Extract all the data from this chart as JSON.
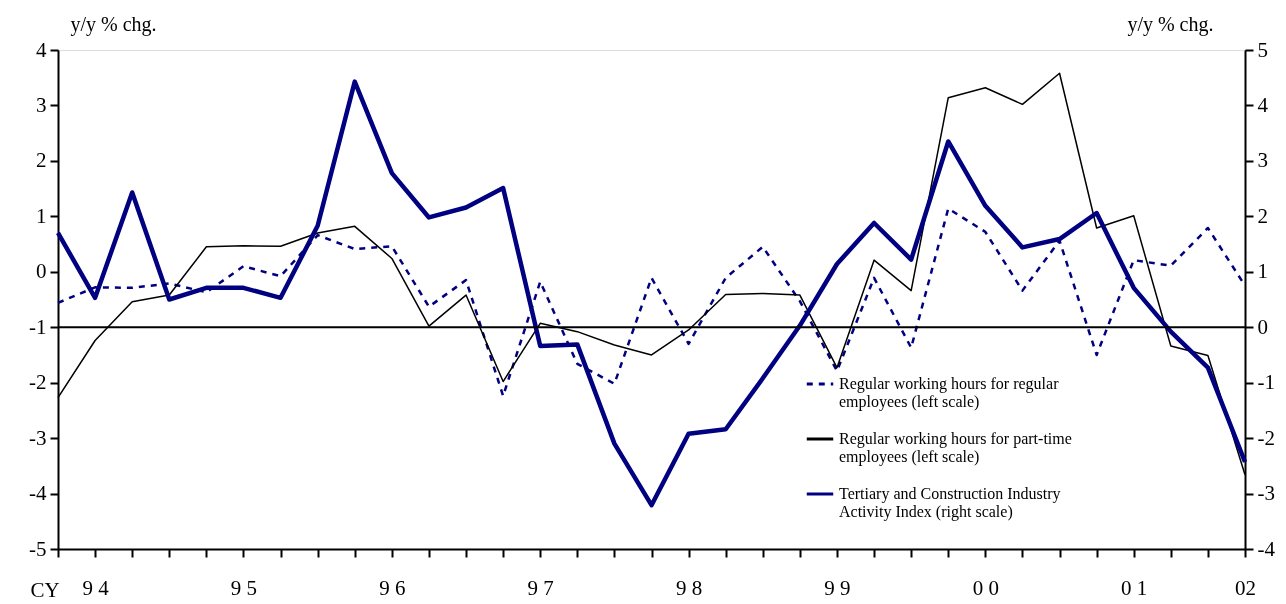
{
  "chart_data": {
    "type": "line",
    "xlabel": "CY",
    "ylabel": "y/y % chg.",
    "y2label": "y/y % chg.",
    "categories": [
      null,
      "9 4",
      null,
      null,
      null,
      "9 5",
      null,
      null,
      null,
      "9 6",
      null,
      null,
      null,
      "9 7",
      null,
      null,
      null,
      "9 8",
      null,
      null,
      null,
      "9 9",
      null,
      null,
      null,
      "0 0",
      null,
      null,
      null,
      "0 1",
      null,
      null,
      "02"
    ],
    "ylim": [
      -5,
      4
    ],
    "yticks": [
      -5,
      -4,
      -3,
      -2,
      -1,
      0,
      1,
      2,
      3,
      4
    ],
    "y2lim": [
      -4,
      5
    ],
    "y2ticks": [
      -4,
      -3,
      -2,
      -1,
      0,
      1,
      2,
      3,
      4,
      5
    ],
    "grid": false,
    "marker": "none",
    "legend": "bottom right",
    "ref_lines": [
      {
        "axis": "y2",
        "value": 0,
        "color": "#000000"
      }
    ],
    "series": [
      {
        "name": "Regular working hours for regular employees (left scale)",
        "color": "#000080",
        "line_style": "dashed",
        "values": [
          -0.56,
          -0.28,
          -0.29,
          -0.21,
          -0.37,
          0.1,
          -0.08,
          0.66,
          0.41,
          0.46,
          -0.63,
          -0.15,
          -2.24,
          -0.18,
          -1.66,
          -2.02,
          -0.11,
          -1.3,
          -0.11,
          0.45,
          -0.53,
          -1.79,
          -0.11,
          -1.37,
          1.14,
          0.72,
          -0.34,
          0.56,
          -1.5,
          0.21,
          0.11,
          0.79,
          -0.25
        ]
      },
      {
        "name": "Regular working hours for part-time employees (left scale)",
        "color": "#000000",
        "line_style": "solid",
        "values": [
          -2.27,
          -1.24,
          -0.54,
          -0.42,
          0.45,
          0.47,
          0.46,
          0.7,
          0.82,
          0.24,
          -0.98,
          -0.42,
          -1.98,
          -0.93,
          -1.08,
          -1.32,
          -1.5,
          -1.05,
          -0.41,
          -0.39,
          -0.42,
          -1.73,
          0.21,
          -0.34,
          3.14,
          3.32,
          3.02,
          3.58,
          0.79,
          1.01,
          -1.34,
          -1.51,
          -3.66
        ]
      },
      {
        "name": "Tertiary and Construction Industry Activity Index (right scale)",
        "color": "#000080",
        "line_style": "solid",
        "axis": "y2",
        "values": [
          1.7,
          0.53,
          2.43,
          0.5,
          0.71,
          0.71,
          0.53,
          1.83,
          4.43,
          2.78,
          1.98,
          2.16,
          2.51,
          -0.34,
          -0.31,
          -2.1,
          -3.21,
          -1.92,
          -1.84,
          -0.92,
          0.03,
          1.14,
          1.88,
          1.22,
          3.35,
          2.19,
          1.44,
          1.59,
          2.06,
          0.71,
          -0.08,
          -0.73,
          -2.43
        ]
      }
    ]
  }
}
